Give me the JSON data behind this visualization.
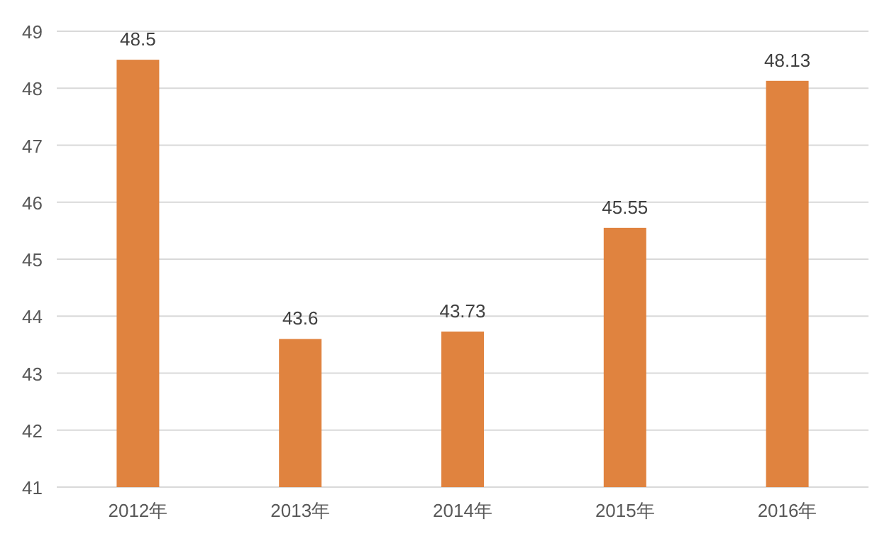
{
  "chart_data": {
    "type": "bar",
    "categories": [
      "2012年",
      "2013年",
      "2014年",
      "2015年",
      "2016年"
    ],
    "values": [
      48.5,
      43.6,
      43.73,
      45.55,
      48.13
    ],
    "color": "#e0833f",
    "ylim": [
      41,
      49
    ],
    "yticks": [
      41,
      42,
      43,
      44,
      45,
      46,
      47,
      48,
      49
    ],
    "grid": "y",
    "data_labels": true
  }
}
